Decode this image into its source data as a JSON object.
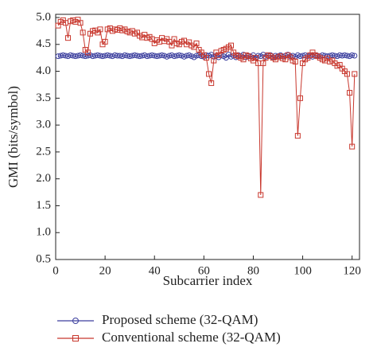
{
  "chart_data": {
    "type": "line",
    "xlabel": "Subcarrier index",
    "ylabel": "GMI (bits/symbol)",
    "xlim": [
      0,
      123
    ],
    "ylim": [
      0.5,
      5.0
    ],
    "xticks": [
      0,
      20,
      40,
      60,
      80,
      100,
      120
    ],
    "yticks": [
      0.5,
      {
        "value": 1.0,
        "label": "1.0"
      },
      1.5,
      {
        "value": 2.0,
        "label": "2.0"
      },
      2.5,
      {
        "value": 3.0,
        "label": "3.0"
      },
      3.5,
      {
        "value": 4.0,
        "label": "4.0"
      },
      4.5,
      {
        "value": 5.0,
        "label": "5.0"
      }
    ],
    "x": [
      1,
      2,
      3,
      4,
      5,
      6,
      7,
      8,
      9,
      10,
      11,
      12,
      13,
      14,
      15,
      16,
      17,
      18,
      19,
      20,
      21,
      22,
      23,
      24,
      25,
      26,
      27,
      28,
      29,
      30,
      31,
      32,
      33,
      34,
      35,
      36,
      37,
      38,
      39,
      40,
      41,
      42,
      43,
      44,
      45,
      46,
      47,
      48,
      49,
      50,
      51,
      52,
      53,
      54,
      55,
      56,
      57,
      58,
      59,
      60,
      61,
      62,
      63,
      64,
      65,
      66,
      67,
      68,
      69,
      70,
      71,
      72,
      73,
      74,
      75,
      76,
      77,
      78,
      79,
      80,
      81,
      82,
      83,
      84,
      85,
      86,
      87,
      88,
      89,
      90,
      91,
      92,
      93,
      94,
      95,
      96,
      97,
      98,
      99,
      100,
      101,
      102,
      103,
      104,
      105,
      106,
      107,
      108,
      109,
      110,
      111,
      112,
      113,
      114,
      115,
      116,
      117,
      118,
      119,
      120,
      121
    ],
    "series": [
      {
        "name": "Proposed scheme (32-QAM)",
        "color": "#3c3f9e",
        "marker": "circle",
        "values": [
          4.28,
          4.29,
          4.3,
          4.29,
          4.28,
          4.3,
          4.29,
          4.28,
          4.29,
          4.3,
          4.29,
          4.28,
          4.29,
          4.3,
          4.28,
          4.29,
          4.3,
          4.29,
          4.28,
          4.29,
          4.3,
          4.29,
          4.28,
          4.3,
          4.29,
          4.29,
          4.28,
          4.3,
          4.29,
          4.28,
          4.29,
          4.3,
          4.29,
          4.28,
          4.29,
          4.3,
          4.28,
          4.29,
          4.3,
          4.29,
          4.28,
          4.29,
          4.3,
          4.29,
          4.27,
          4.29,
          4.3,
          4.28,
          4.29,
          4.3,
          4.29,
          4.27,
          4.29,
          4.3,
          4.28,
          4.26,
          4.29,
          4.3,
          4.28,
          4.27,
          4.3,
          4.29,
          4.31,
          4.27,
          4.29,
          4.26,
          4.3,
          4.28,
          4.25,
          4.31,
          4.27,
          4.29,
          4.26,
          4.3,
          4.28,
          4.31,
          4.26,
          4.29,
          4.27,
          4.3,
          4.25,
          4.29,
          4.28,
          4.31,
          4.27,
          4.29,
          4.3,
          4.26,
          4.29,
          4.28,
          4.3,
          4.27,
          4.29,
          4.31,
          4.28,
          4.29,
          4.27,
          4.3,
          4.28,
          4.29,
          4.3,
          4.28,
          4.29,
          4.27,
          4.3,
          4.29,
          4.28,
          4.3,
          4.29,
          4.28,
          4.29,
          4.3,
          4.29,
          4.28,
          4.3,
          4.29,
          4.3,
          4.29,
          4.28,
          4.3,
          4.29
        ]
      },
      {
        "name": "Conventional scheme (32-QAM)",
        "color": "#c8372d",
        "marker": "square",
        "values": [
          4.85,
          4.92,
          4.95,
          4.9,
          4.62,
          4.93,
          4.95,
          4.92,
          4.96,
          4.9,
          4.72,
          4.4,
          4.35,
          4.7,
          4.75,
          4.76,
          4.72,
          4.78,
          4.5,
          4.55,
          4.78,
          4.8,
          4.75,
          4.78,
          4.77,
          4.8,
          4.76,
          4.78,
          4.74,
          4.72,
          4.75,
          4.7,
          4.72,
          4.66,
          4.63,
          4.68,
          4.62,
          4.64,
          4.6,
          4.52,
          4.58,
          4.55,
          4.62,
          4.56,
          4.6,
          4.55,
          4.48,
          4.6,
          4.52,
          4.5,
          4.55,
          4.57,
          4.5,
          4.54,
          4.48,
          4.45,
          4.52,
          4.4,
          4.35,
          4.3,
          4.25,
          3.95,
          3.78,
          4.2,
          4.35,
          4.3,
          4.38,
          4.4,
          4.42,
          4.45,
          4.48,
          4.35,
          4.3,
          4.28,
          4.25,
          4.22,
          4.3,
          4.28,
          4.24,
          4.2,
          4.25,
          4.15,
          1.7,
          4.15,
          4.25,
          4.3,
          4.28,
          4.25,
          4.22,
          4.26,
          4.28,
          4.24,
          4.22,
          4.3,
          4.26,
          4.2,
          4.18,
          2.8,
          3.5,
          4.15,
          4.22,
          4.25,
          4.3,
          4.35,
          4.3,
          4.28,
          4.25,
          4.22,
          4.2,
          4.24,
          4.18,
          4.2,
          4.15,
          4.1,
          4.12,
          4.05,
          4.0,
          3.95,
          3.6,
          2.6,
          3.95
        ]
      }
    ]
  }
}
